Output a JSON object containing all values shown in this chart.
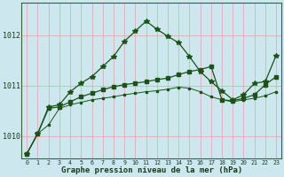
{
  "title": "Graphe pression niveau de la mer (hPa)",
  "bg_color": "#cce8ee",
  "grid_color": "#e8a0a0",
  "dark_green": "#1a5218",
  "xlim_min": -0.5,
  "xlim_max": 23.5,
  "ylim_min": 1009.55,
  "ylim_max": 1012.65,
  "yticks": [
    1010,
    1011,
    1012
  ],
  "xticks": [
    0,
    1,
    2,
    3,
    4,
    5,
    6,
    7,
    8,
    9,
    10,
    11,
    12,
    13,
    14,
    15,
    16,
    17,
    18,
    19,
    20,
    21,
    22,
    23
  ],
  "line_wavy": [
    1009.65,
    1010.05,
    1010.58,
    1010.62,
    1010.88,
    1011.05,
    1011.18,
    1011.38,
    1011.58,
    1011.88,
    1012.08,
    1012.28,
    1012.12,
    1011.98,
    1011.85,
    1011.58,
    1011.28,
    1011.08,
    1010.9,
    1010.72,
    1010.82,
    1011.05,
    1011.08,
    1011.6
  ],
  "line_mid": [
    1009.65,
    1010.05,
    1010.55,
    1010.58,
    1010.68,
    1010.78,
    1010.85,
    1010.92,
    1010.98,
    1011.02,
    1011.05,
    1011.08,
    1011.12,
    1011.15,
    1011.22,
    1011.28,
    1011.32,
    1011.38,
    1010.72,
    1010.7,
    1010.75,
    1010.82,
    1011.02,
    1011.18
  ],
  "line_flat": [
    1009.65,
    1010.05,
    1010.22,
    1010.55,
    1010.62,
    1010.67,
    1010.72,
    1010.75,
    1010.78,
    1010.82,
    1010.85,
    1010.88,
    1010.9,
    1010.93,
    1010.97,
    1010.95,
    1010.88,
    1010.78,
    1010.72,
    1010.68,
    1010.72,
    1010.75,
    1010.8,
    1010.88
  ]
}
